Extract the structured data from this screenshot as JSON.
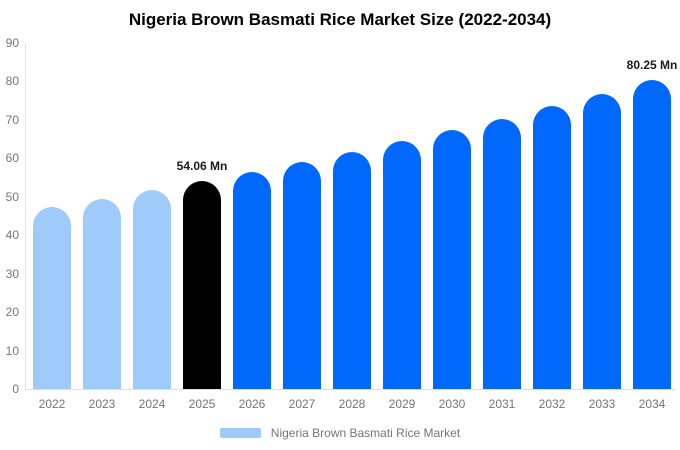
{
  "title": "Nigeria Brown Basmati Rice Market Size (2022-2034)",
  "colors": {
    "bar_blue": "#0068fa",
    "bar_light_blue": "#9fcbfa",
    "bar_black": "#000000",
    "axis_text": "#757575",
    "axis_line": "#e0e0e0",
    "data_label_text": "#1a1a1a",
    "title_text": "#000000"
  },
  "chart_data": {
    "type": "bar",
    "title": "Nigeria Brown Basmati Rice Market Size (2022-2034)",
    "categories": [
      "2022",
      "2023",
      "2024",
      "2025",
      "2026",
      "2027",
      "2028",
      "2029",
      "2030",
      "2031",
      "2032",
      "2033",
      "2034"
    ],
    "values": [
      47.38,
      49.51,
      51.74,
      54.06,
      56.49,
      59.02,
      61.67,
      64.44,
      67.33,
      70.36,
      73.52,
      76.82,
      80.25
    ],
    "unit": "Mn",
    "xlabel": "",
    "ylabel": "",
    "ylim": [
      0,
      90
    ],
    "ytick_interval": 10,
    "grid": false,
    "bar_colors": [
      "#9fcbfa",
      "#9fcbfa",
      "#9fcbfa",
      "#000000",
      "#0068fa",
      "#0068fa",
      "#0068fa",
      "#0068fa",
      "#0068fa",
      "#0068fa",
      "#0068fa",
      "#0068fa",
      "#0068fa"
    ],
    "data_labels": [
      {
        "index": 3,
        "text": "54.06 Mn"
      },
      {
        "index": 12,
        "text": "80.25 Mn"
      }
    ],
    "legend": {
      "position": "bottom",
      "label": "Nigeria Brown Basmati Rice Market",
      "swatch_color": "#9fcbfa"
    }
  }
}
